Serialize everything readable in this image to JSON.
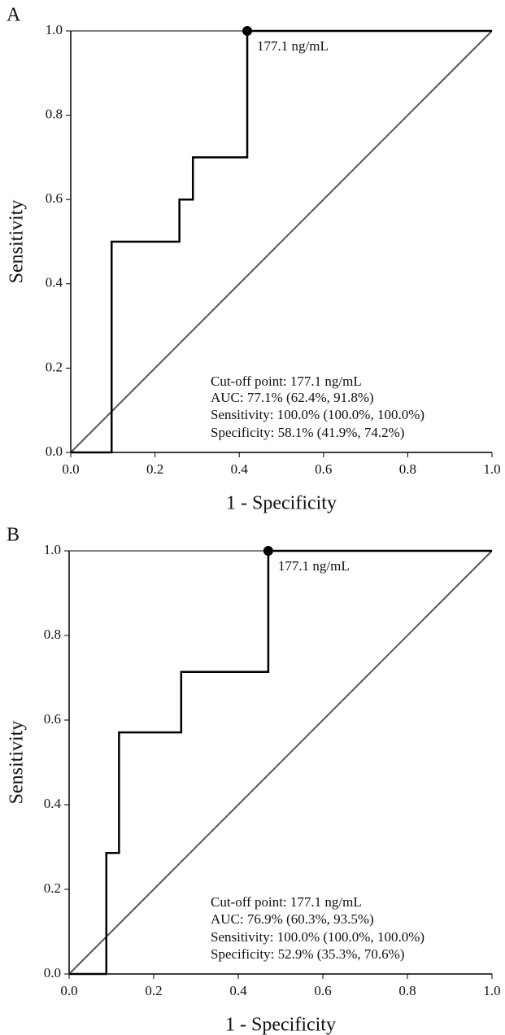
{
  "chart_data": [
    {
      "type": "line",
      "panel": "A",
      "x_label": "1 - Specificity",
      "y_label": "Sensitivity",
      "x": [
        0,
        0.097,
        0.097,
        0.258,
        0.258,
        0.29,
        0.29,
        0.419,
        0.419,
        1
      ],
      "series": [
        {
          "color": "#000000",
          "values": [
            0,
            0,
            0.5,
            0.5,
            0.6,
            0.6,
            0.7,
            0.7,
            1,
            1
          ]
        }
      ],
      "cutoff": {
        "x": 0.419,
        "y": 1,
        "label": "177.1 ng/mL"
      },
      "annotations": [
        "Cut-off point: 177.1 ng/mL",
        "AUC: 77.1% (62.4%, 91.8%)",
        "Sensitivity: 100.0% (100.0%, 100.0%)",
        "Specificity: 58.1% (41.9%, 74.2%)"
      ],
      "xlim": [
        0,
        1
      ],
      "ylim": [
        0,
        1
      ],
      "xticks": [
        {
          "value": 0,
          "label": "0.0"
        },
        0.2,
        0.4,
        0.6,
        0.8,
        {
          "value": 1,
          "label": "1.0"
        }
      ],
      "yticks": [
        {
          "value": 0,
          "label": "0.0"
        },
        0.2,
        0.4,
        0.6,
        0.8,
        {
          "value": 1,
          "label": "1.0"
        }
      ],
      "reference_color": "#555555"
    },
    {
      "type": "line",
      "panel": "B",
      "x_label": "1 - Specificity",
      "y_label": "Sensitivity",
      "x": [
        0,
        0.088,
        0.088,
        0.118,
        0.118,
        0.265,
        0.265,
        0.471,
        0.471,
        1
      ],
      "series": [
        {
          "color": "#000000",
          "values": [
            0,
            0,
            0.286,
            0.286,
            0.571,
            0.571,
            0.714,
            0.714,
            1,
            1
          ]
        }
      ],
      "cutoff": {
        "x": 0.471,
        "y": 1,
        "label": "177.1 ng/mL"
      },
      "annotations": [
        "Cut-off point: 177.1 ng/mL",
        "AUC: 76.9% (60.3%, 93.5%)",
        "Sensitivity: 100.0% (100.0%, 100.0%)",
        "Specificity: 52.9% (35.3%, 70.6%)"
      ],
      "xlim": [
        0,
        1
      ],
      "ylim": [
        0,
        1
      ],
      "xticks": [
        {
          "value": 0,
          "label": "0.0"
        },
        0.2,
        0.4,
        0.6,
        0.8,
        {
          "value": 1,
          "label": "1.0"
        }
      ],
      "yticks": [
        {
          "value": 0,
          "label": "0.0"
        },
        0.2,
        0.4,
        0.6,
        0.8,
        {
          "value": 1,
          "label": "1.0"
        }
      ],
      "reference_color": "#555555"
    }
  ]
}
